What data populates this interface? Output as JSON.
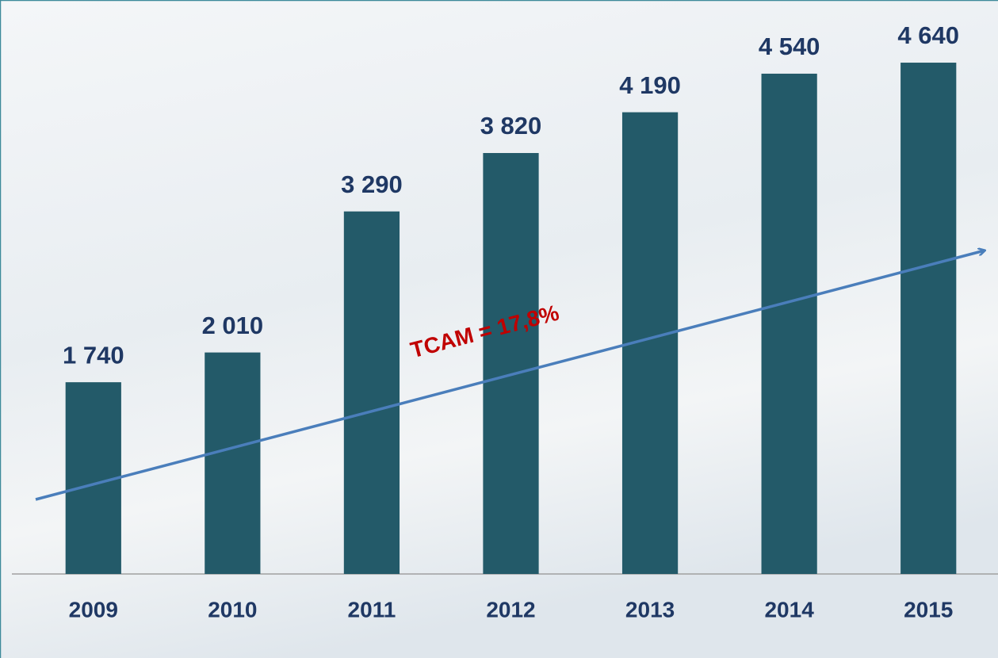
{
  "chart_data": {
    "type": "bar",
    "categories": [
      "2009",
      "2010",
      "2011",
      "2012",
      "2013",
      "2014",
      "2015"
    ],
    "values": [
      1740,
      2010,
      3290,
      3820,
      4190,
      4540,
      4640
    ],
    "value_labels": [
      "1 740",
      "2 010",
      "3 290",
      "3 820",
      "4 190",
      "4 540",
      "4 640"
    ],
    "color": "#235a69",
    "ylim": [
      0,
      5000
    ],
    "annotation": "TCAM = 17,8%",
    "annotation_color": "#c00000"
  }
}
